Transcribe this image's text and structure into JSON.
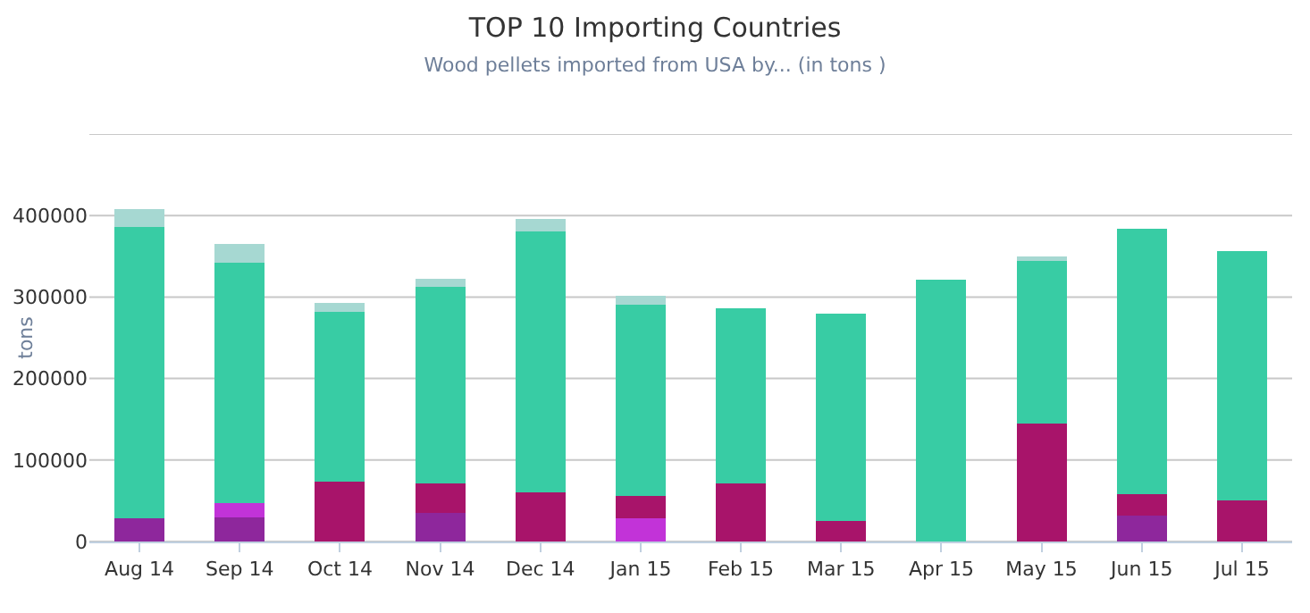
{
  "chart_data": {
    "type": "bar",
    "title": "TOP 10 Importing Countries",
    "subtitle": "Wood pellets imported from USA by... (in tons )",
    "ylabel": "tons",
    "categories": [
      "Aug 14",
      "Sep 14",
      "Oct 14",
      "Nov 14",
      "Dec 14",
      "Jan 15",
      "Feb 15",
      "Mar 15",
      "Apr 15",
      "May 15",
      "Jun 15",
      "Jul 15"
    ],
    "stacked": true,
    "series": [
      {
        "color": "#8e279c",
        "values": [
          29000,
          30000,
          0,
          35000,
          0,
          0,
          0,
          0,
          0,
          0,
          32000,
          0
        ]
      },
      {
        "color": "#c233d8",
        "values": [
          0,
          17000,
          0,
          0,
          0,
          28000,
          0,
          0,
          0,
          0,
          0,
          0
        ]
      },
      {
        "color": "#a8146a",
        "values": [
          0,
          0,
          73000,
          36000,
          60000,
          28000,
          71000,
          25000,
          0,
          145000,
          26000,
          50000
        ]
      },
      {
        "color": "#38cca4",
        "values": [
          357000,
          295000,
          209000,
          241000,
          320000,
          235000,
          215000,
          255000,
          321000,
          199000,
          326000,
          306000
        ]
      },
      {
        "color": "#a6d8d2",
        "values": [
          22000,
          23000,
          11000,
          10000,
          16000,
          10000,
          0,
          0,
          0,
          6000,
          0,
          0
        ]
      }
    ],
    "ylim": [
      0,
      500000
    ],
    "yticks": [
      0,
      100000,
      200000,
      300000,
      400000,
      {
        "value": 500000,
        "label": null
      }
    ],
    "grid": "y"
  }
}
